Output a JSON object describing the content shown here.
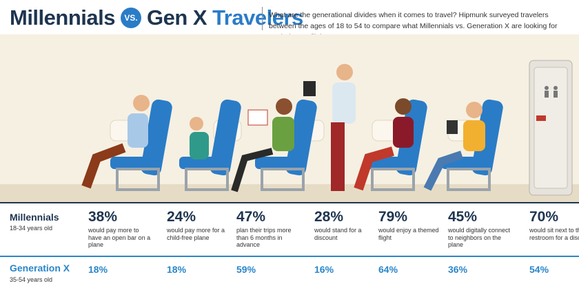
{
  "header": {
    "title": {
      "part1": "Millennials",
      "vs": "VS.",
      "part2": "Gen X",
      "part3": "Travelers"
    },
    "description": "What are the generational divides when it comes to travel? Hipmunk surveyed travelers between the ages of 18 to 54 to compare what Millennials vs. Generation X are looking for on their next flight."
  },
  "rows": [
    {
      "label": "Millennials",
      "sublabel": "18-34 years old",
      "items": [
        {
          "value": "38%",
          "text": "would pay more to have an open bar on a plane"
        },
        {
          "value": "24%",
          "text": "would pay more for a child-free plane"
        },
        {
          "value": "47%",
          "text": "plan their trips more than 6 months in advance"
        },
        {
          "value": "28%",
          "text": "would stand for a discount"
        },
        {
          "value": "79%",
          "text": "would enjoy a themed flight"
        },
        {
          "value": "45%",
          "text": "would digitally connect to neighbors on the plane"
        },
        {
          "value": "70%",
          "text": "would sit next to the restroom for a discount"
        }
      ]
    },
    {
      "label": "Generation X",
      "sublabel": "35-54 years old",
      "items": [
        {
          "value": "18%"
        },
        {
          "value": "18%"
        },
        {
          "value": "59%"
        },
        {
          "value": "16%"
        },
        {
          "value": "64%"
        },
        {
          "value": "36%"
        },
        {
          "value": "54%"
        }
      ]
    }
  ]
}
